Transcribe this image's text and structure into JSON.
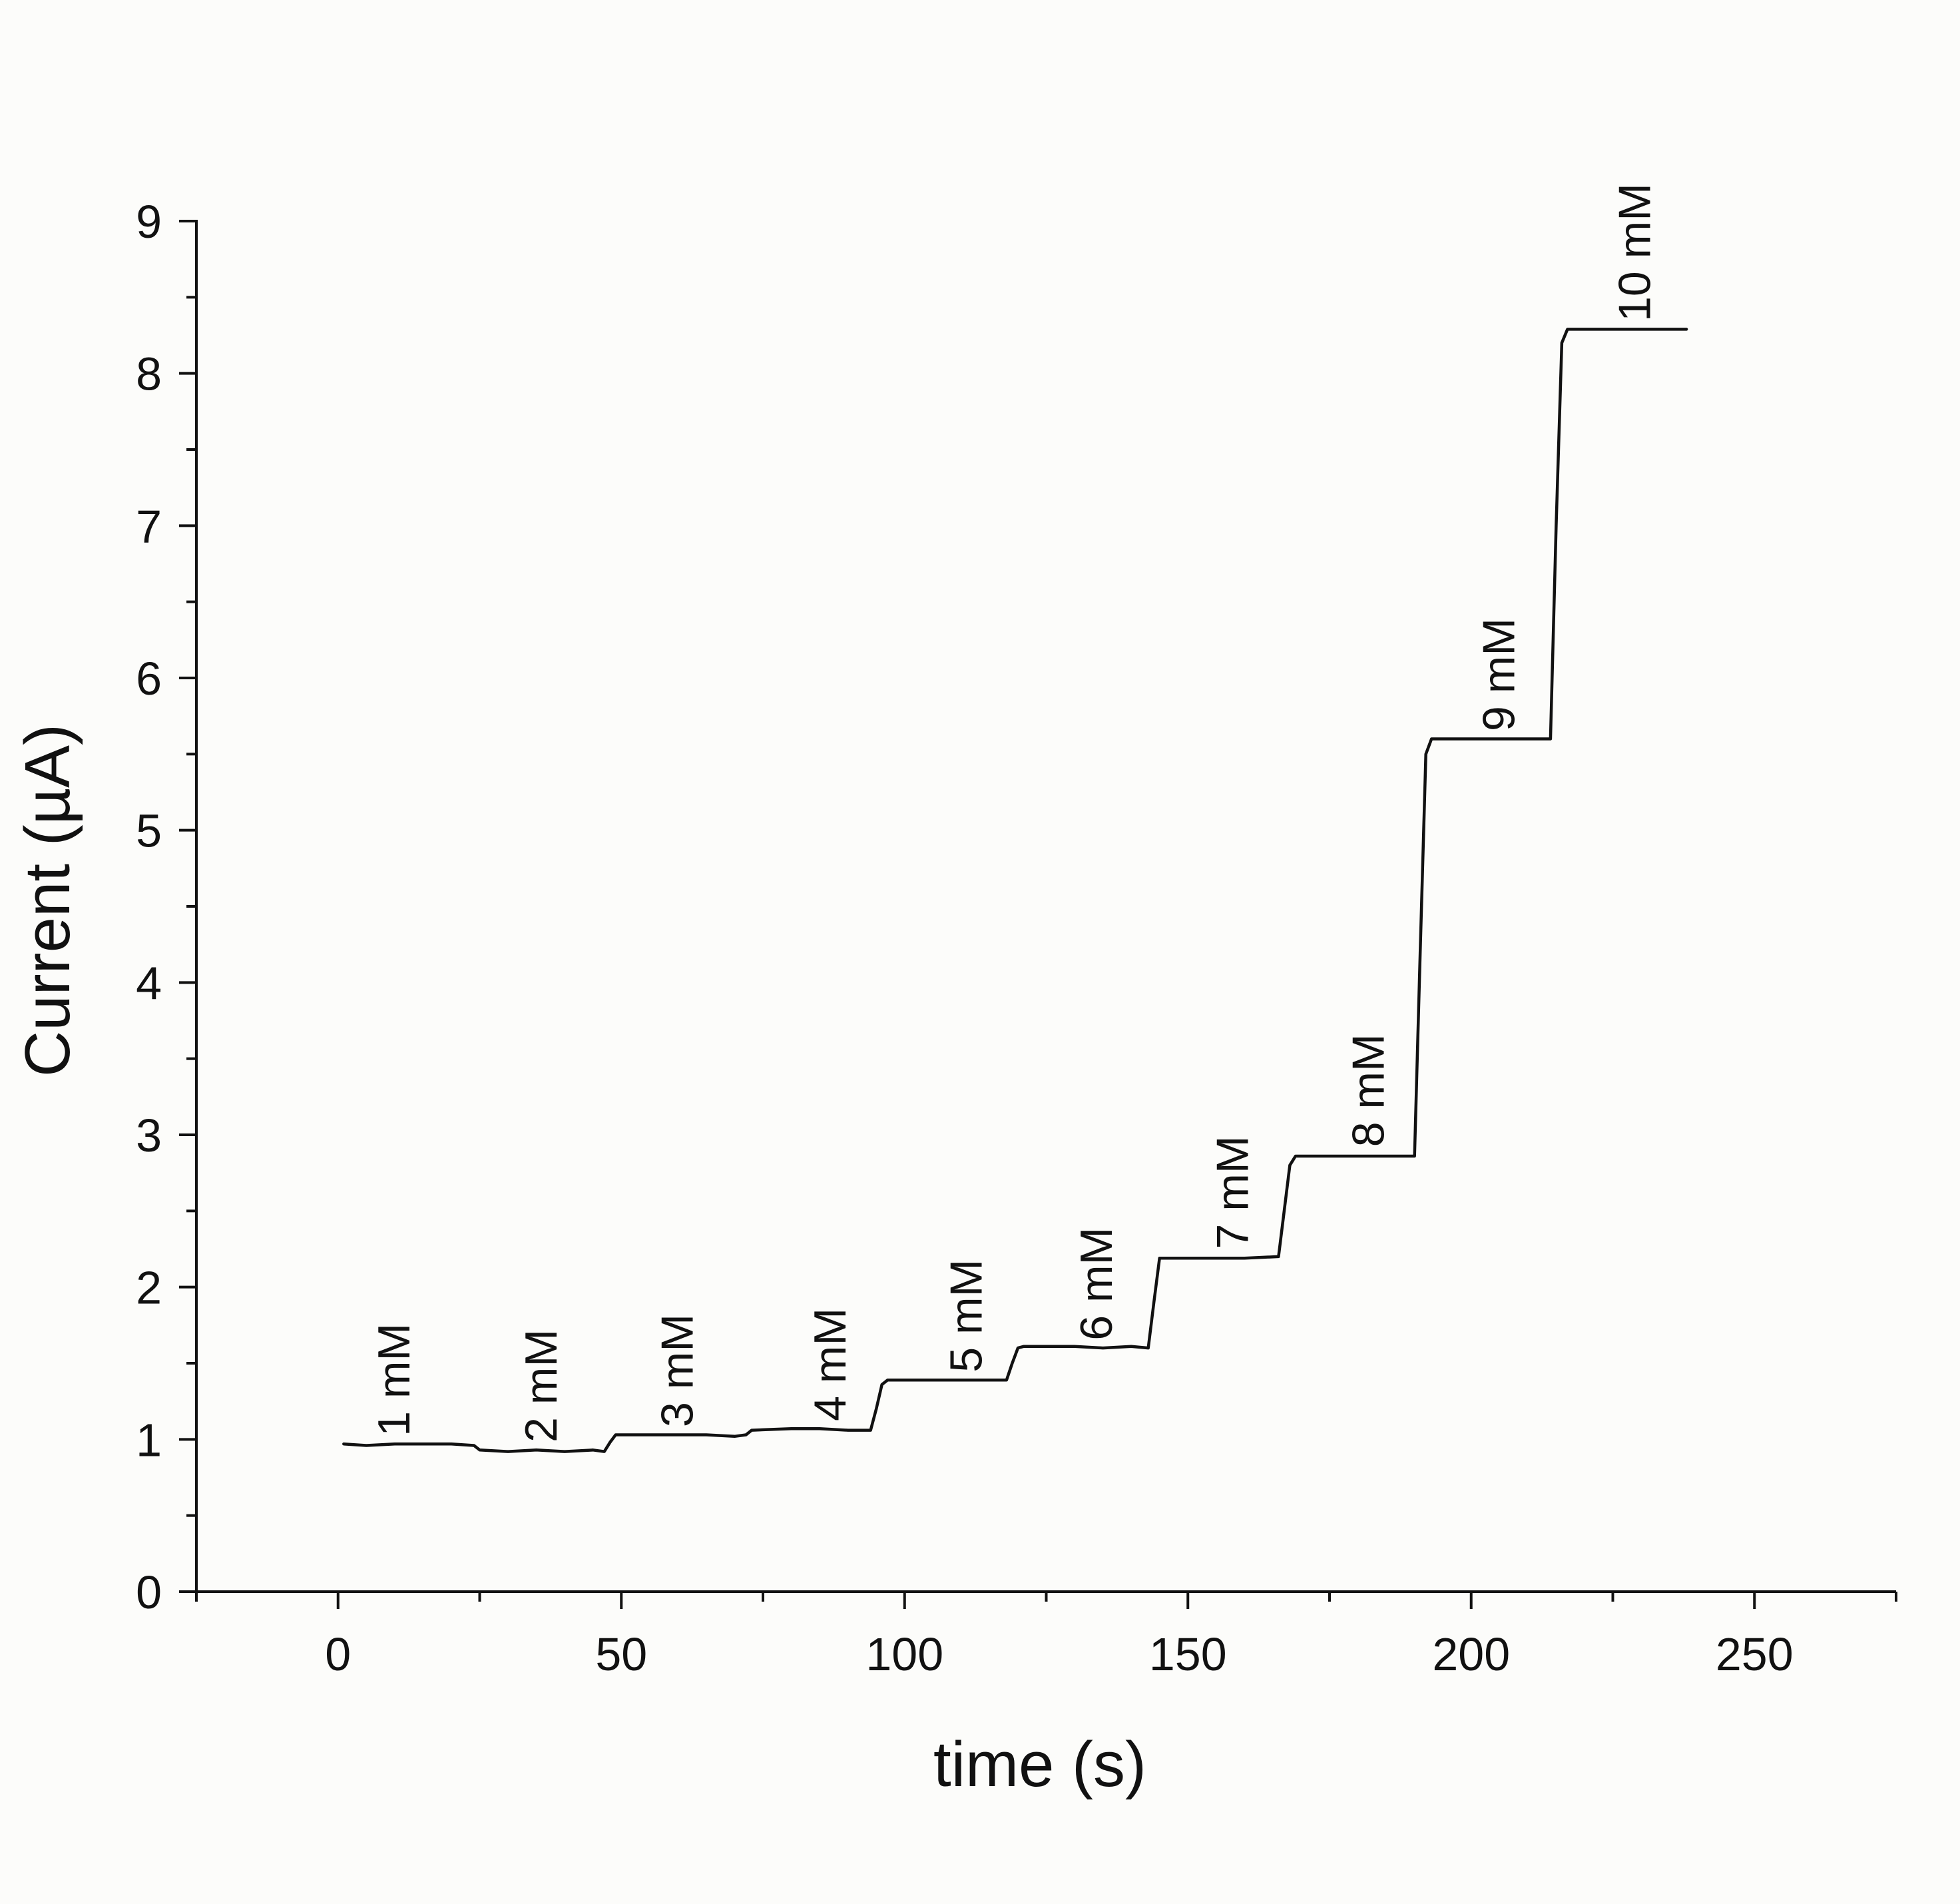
{
  "chart_data": {
    "type": "line",
    "title": "",
    "xlabel": "time (s)",
    "ylabel": "Current (µA)",
    "xlim": [
      -25,
      275
    ],
    "ylim": [
      0,
      9
    ],
    "x_ticks": [
      "0",
      "50",
      "100",
      "150",
      "200",
      "250"
    ],
    "y_ticks": [
      "0",
      "1",
      "2",
      "3",
      "4",
      "5",
      "6",
      "7",
      "8",
      "9"
    ],
    "grid": false,
    "legend": "none",
    "line_color": "#111111",
    "series": [
      {
        "x": [
          1,
          5,
          10,
          15,
          20,
          24,
          25,
          30,
          35,
          40,
          45,
          47,
          48,
          49,
          55,
          60,
          65,
          70,
          72,
          73,
          80,
          85,
          90,
          94,
          95,
          96,
          97,
          105,
          110,
          115,
          118,
          119,
          120,
          121,
          130,
          135,
          140,
          143,
          144,
          145,
          150,
          155,
          160,
          166,
          167,
          168,
          169,
          175,
          180,
          185,
          190,
          191,
          192,
          193,
          200,
          205,
          210,
          214,
          215,
          216,
          217,
          225,
          230,
          238
        ],
        "y": [
          0.97,
          0.96,
          0.97,
          0.97,
          0.97,
          0.96,
          0.93,
          0.92,
          0.93,
          0.92,
          0.93,
          0.92,
          0.98,
          1.03,
          1.03,
          1.03,
          1.03,
          1.02,
          1.03,
          1.06,
          1.07,
          1.07,
          1.06,
          1.06,
          1.2,
          1.36,
          1.39,
          1.39,
          1.39,
          1.39,
          1.39,
          1.5,
          1.6,
          1.61,
          1.61,
          1.6,
          1.61,
          1.6,
          1.9,
          2.19,
          2.19,
          2.19,
          2.19,
          2.2,
          2.5,
          2.8,
          2.86,
          2.86,
          2.86,
          2.86,
          2.86,
          4.2,
          5.5,
          5.6,
          5.6,
          5.6,
          5.6,
          5.6,
          7.0,
          8.2,
          8.29,
          8.29,
          8.29,
          8.29
        ]
      }
    ],
    "annotations": [
      {
        "text": "1 mM",
        "x": 10,
        "y": 1.02
      },
      {
        "text": "2 mM",
        "x": 36,
        "y": 0.98
      },
      {
        "text": "3 mM",
        "x": 60,
        "y": 1.08
      },
      {
        "text": "4 mM",
        "x": 87,
        "y": 1.12
      },
      {
        "text": "5 mM",
        "x": 111,
        "y": 1.44
      },
      {
        "text": "6 mM",
        "x": 134,
        "y": 1.65
      },
      {
        "text": "7 mM",
        "x": 158,
        "y": 2.25
      },
      {
        "text": "8 mM",
        "x": 182,
        "y": 2.92
      },
      {
        "text": "9 mM",
        "x": 205,
        "y": 5.65
      },
      {
        "text": "10 mM",
        "x": 229,
        "y": 8.34
      }
    ]
  }
}
